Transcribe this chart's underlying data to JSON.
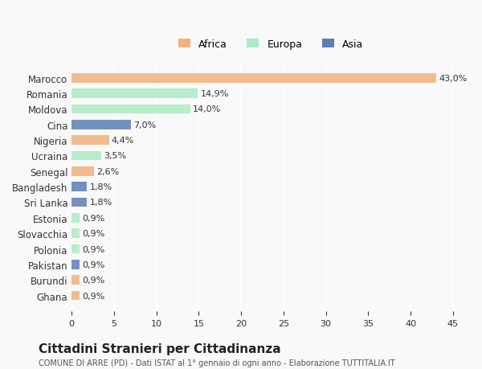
{
  "countries": [
    "Marocco",
    "Romania",
    "Moldova",
    "Cina",
    "Nigeria",
    "Ucraina",
    "Senegal",
    "Bangladesh",
    "Sri Lanka",
    "Estonia",
    "Slovacchia",
    "Polonia",
    "Pakistan",
    "Burundi",
    "Ghana"
  ],
  "values": [
    43.0,
    14.9,
    14.0,
    7.0,
    4.4,
    3.5,
    2.6,
    1.8,
    1.8,
    0.9,
    0.9,
    0.9,
    0.9,
    0.9,
    0.9
  ],
  "labels": [
    "43,0%",
    "14,9%",
    "14,0%",
    "7,0%",
    "4,4%",
    "3,5%",
    "2,6%",
    "1,8%",
    "1,8%",
    "0,9%",
    "0,9%",
    "0,9%",
    "0,9%",
    "0,9%",
    "0,9%"
  ],
  "bar_colors": [
    "#F0B27A",
    "#ABEBC6",
    "#ABEBC6",
    "#5B7FB5",
    "#F0B27A",
    "#ABEBC6",
    "#F0B27A",
    "#5B7FB5",
    "#5B7FB5",
    "#ABEBC6",
    "#ABEBC6",
    "#ABEBC6",
    "#5B7FB5",
    "#F0B27A",
    "#F0B27A"
  ],
  "title": "Cittadini Stranieri per Cittadinanza",
  "subtitle": "COMUNE DI ARRE (PD) - Dati ISTAT al 1° gennaio di ogni anno - Elaborazione TUTTITALIA.IT",
  "xlim": [
    0,
    47
  ],
  "xticks": [
    0,
    5,
    10,
    15,
    20,
    25,
    30,
    35,
    40,
    45
  ],
  "background_color": "#f9f9f9",
  "legend_items": [
    "Africa",
    "Europa",
    "Asia"
  ],
  "legend_colors": [
    "#F0B27A",
    "#ABEBC6",
    "#5B7FB5"
  ]
}
